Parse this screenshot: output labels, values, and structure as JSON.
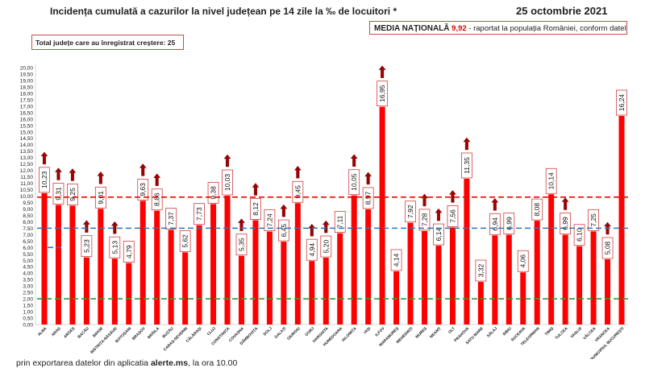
{
  "header": {
    "title": "Incidența cumulată a cazurilor la nivel județean pe 14 zile la ‰ de locuitori *",
    "date": "25 octombrie 2021",
    "media_label": "MEDIA NAȚIONALĂ",
    "media_value": "9,92",
    "media_suffix": " -  raportat la populația României, conform datelor INS",
    "total_label": "Total județe care au înregistrat creștere:  25"
  },
  "footer": {
    "prefix": "prin exportarea datelor din aplicatia ",
    "bold": "alerte.ms",
    "suffix": ", la ora 10.00"
  },
  "chart_data": {
    "type": "bar",
    "title": "Incidența cumulată a cazurilor la nivel județean pe 14 zile la ‰ de locuitori *",
    "ylim": [
      0,
      20
    ],
    "ytick_step": 0.5,
    "grid": false,
    "bar_color": "#ff0000",
    "arrow_color": "#a00000",
    "categories": [
      "ALBA",
      "ARAD",
      "ARGEȘ",
      "BACĂU",
      "BIHOR",
      "BISTRIȚA-NĂSĂUD",
      "BOTOȘANI",
      "BRAȘOV",
      "BRĂILA",
      "BUZĂU",
      "CARAȘ-SEVERIN",
      "CĂLĂRAȘI",
      "CLUJ",
      "CONSTANȚA",
      "COVASNA",
      "DÂMBOVIȚA",
      "DOLJ",
      "GALAȚI",
      "GIURGIU",
      "GORJ",
      "HARGHITA",
      "HUNEDOARA",
      "IALOMIȚA",
      "IAȘI",
      "ILFOV",
      "MARAMUREȘ",
      "MEHEDINȚI",
      "MUREȘ",
      "NEAMȚ",
      "OLT",
      "PRAHOVA",
      "SATU MARE",
      "SĂLAJ",
      "SIBIU",
      "SUCEAVA",
      "TELEORMAN",
      "TIMIȘ",
      "TULCEA",
      "VASLUI",
      "VÂLCEA",
      "VRANCEA",
      "MUNICIPIUL BUCUREȘTI"
    ],
    "values": [
      10.23,
      9.31,
      9.25,
      5.23,
      9.01,
      5.13,
      4.79,
      9.63,
      8.86,
      7.37,
      5.62,
      7.73,
      9.38,
      10.03,
      5.35,
      8.12,
      7.24,
      6.45,
      9.45,
      4.94,
      5.2,
      7.11,
      10.05,
      8.97,
      16.95,
      4.14,
      7.92,
      7.28,
      6.14,
      7.56,
      11.35,
      3.32,
      6.94,
      6.99,
      4.06,
      8.08,
      10.14,
      6.99,
      6.1,
      7.25,
      5.08,
      16.24
    ],
    "increase": [
      true,
      true,
      true,
      true,
      true,
      true,
      false,
      true,
      true,
      false,
      false,
      false,
      false,
      true,
      true,
      true,
      false,
      true,
      true,
      true,
      true,
      false,
      true,
      true,
      true,
      false,
      false,
      true,
      true,
      true,
      true,
      false,
      true,
      false,
      false,
      false,
      false,
      true,
      false,
      false,
      true,
      false
    ],
    "reference_lines": [
      {
        "value": 9.92,
        "color": "#ff0000"
      },
      {
        "value": 7.5,
        "color": "#2e75b6"
      },
      {
        "value": 2.0,
        "color": "#339933"
      }
    ]
  }
}
